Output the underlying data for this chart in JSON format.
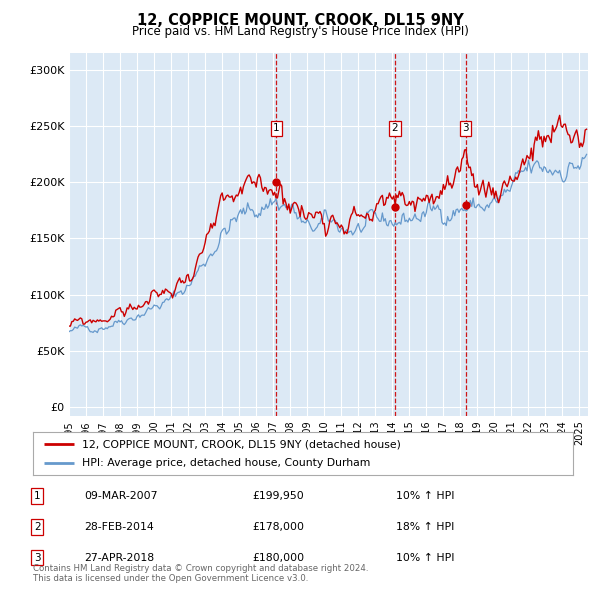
{
  "title": "12, COPPICE MOUNT, CROOK, DL15 9NY",
  "subtitle": "Price paid vs. HM Land Registry's House Price Index (HPI)",
  "bg_color": "#dce9f5",
  "fig_bg_color": "#ffffff",
  "red_line_color": "#cc0000",
  "blue_line_color": "#6699cc",
  "sale_marker_color": "#cc0000",
  "vline_color": "#cc0000",
  "yticks": [
    0,
    50000,
    100000,
    150000,
    200000,
    250000,
    300000
  ],
  "ytick_labels": [
    "£0",
    "£50K",
    "£100K",
    "£150K",
    "£200K",
    "£250K",
    "£300K"
  ],
  "xmin": 1995.0,
  "xmax": 2025.5,
  "ymin": -8000,
  "ymax": 315000,
  "sale_dates": [
    2007.19,
    2014.16,
    2018.32
  ],
  "sale_prices": [
    199950,
    178000,
    180000
  ],
  "sale_labels": [
    "1",
    "2",
    "3"
  ],
  "transactions": [
    {
      "label": "1",
      "date": "09-MAR-2007",
      "price": "£199,950",
      "hpi": "10% ↑ HPI"
    },
    {
      "label": "2",
      "date": "28-FEB-2014",
      "price": "£178,000",
      "hpi": "18% ↑ HPI"
    },
    {
      "label": "3",
      "date": "27-APR-2018",
      "price": "£180,000",
      "hpi": "10% ↑ HPI"
    }
  ],
  "legend_line1": "12, COPPICE MOUNT, CROOK, DL15 9NY (detached house)",
  "legend_line2": "HPI: Average price, detached house, County Durham",
  "footnote": "Contains HM Land Registry data © Crown copyright and database right 2024.\nThis data is licensed under the Open Government Licence v3.0."
}
